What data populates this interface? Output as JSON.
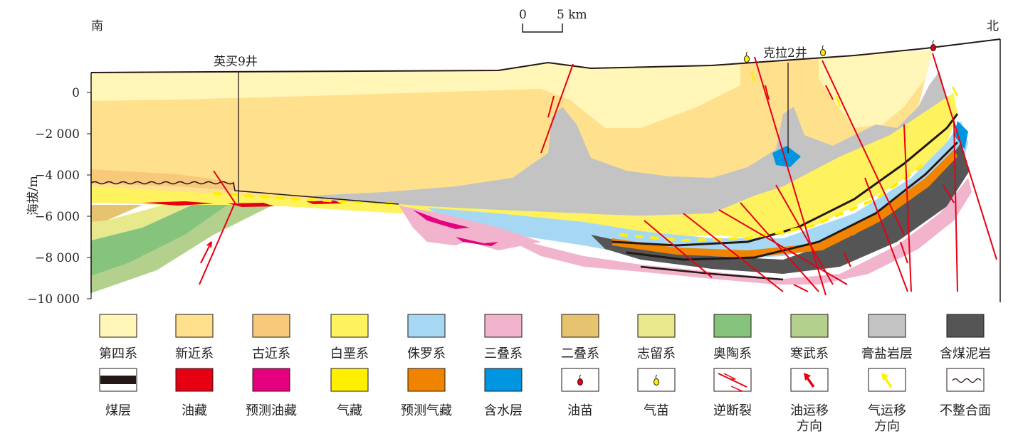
{
  "orientation": {
    "south": "南",
    "north": "北"
  },
  "scale_bar": {
    "start": "0",
    "end": "5 km"
  },
  "wells": [
    {
      "name": "英买9井"
    },
    {
      "name": "克拉2井"
    }
  ],
  "axis": {
    "ylabel": "海拔/m",
    "ticks": [
      "0",
      "−2 000",
      "−4 000",
      "−6 000",
      "−8 000",
      "−10 000"
    ]
  },
  "colors": {
    "quaternary": "#fff6b8",
    "neogene": "#ffe08c",
    "paleogene": "#f9c97b",
    "cretaceous": "#fff25f",
    "jurassic": "#a6d8f4",
    "triassic": "#f2b3cd",
    "permian": "#e6c46f",
    "silurian": "#e8e98c",
    "ordovician": "#86c47e",
    "cambrian": "#b3d08d",
    "gypsum_salt": "#c3c3c3",
    "coal_mudstone": "#555555",
    "coal_seam": "#231815",
    "oil_reservoir": "#e60012",
    "predicted_oil": "#e4007f",
    "gas_reservoir": "#fff000",
    "predicted_gas": "#f08300",
    "aquifer": "#0095e0",
    "fault": "#e60012"
  },
  "legend_row1": [
    {
      "label": "第四系",
      "color_key": "quaternary"
    },
    {
      "label": "新近系",
      "color_key": "neogene"
    },
    {
      "label": "古近系",
      "color_key": "paleogene"
    },
    {
      "label": "白垩系",
      "color_key": "cretaceous"
    },
    {
      "label": "侏罗系",
      "color_key": "jurassic"
    },
    {
      "label": "三叠系",
      "color_key": "triassic"
    },
    {
      "label": "二叠系",
      "color_key": "permian"
    },
    {
      "label": "志留系",
      "color_key": "silurian"
    },
    {
      "label": "奥陶系",
      "color_key": "ordovician"
    },
    {
      "label": "寒武系",
      "color_key": "cambrian"
    },
    {
      "label": "膏盐岩层",
      "color_key": "gypsum_salt"
    },
    {
      "label": "含煤泥岩",
      "color_key": "coal_mudstone"
    }
  ],
  "legend_row2": [
    {
      "label": "煤层",
      "symbol": "coal-seam"
    },
    {
      "label": "油藏",
      "symbol": "oil-reservoir"
    },
    {
      "label": "预测油藏",
      "symbol": "predicted-oil"
    },
    {
      "label": "气藏",
      "symbol": "gas-reservoir"
    },
    {
      "label": "预测气藏",
      "symbol": "predicted-gas"
    },
    {
      "label": "含水层",
      "symbol": "aquifer"
    },
    {
      "label": "油苗",
      "symbol": "oil-seep"
    },
    {
      "label": "气苗",
      "symbol": "gas-seep"
    },
    {
      "label": "逆断裂",
      "symbol": "reverse-fault"
    },
    {
      "label": "油运移方向",
      "label_lines": [
        "油运移",
        "方向"
      ],
      "symbol": "oil-migration-arrow"
    },
    {
      "label": "气运移方向",
      "label_lines": [
        "气运移",
        "方向"
      ],
      "symbol": "gas-migration-arrow"
    },
    {
      "label": "不整合面",
      "symbol": "unconformity"
    }
  ]
}
